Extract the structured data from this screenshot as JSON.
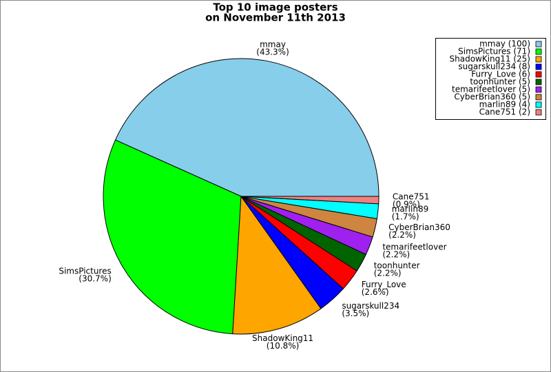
{
  "chart_data": {
    "type": "pie",
    "title": [
      "Top 10 image posters",
      "on November 11th 2013"
    ],
    "categories": [
      "mmay",
      "SimsPictures",
      "ShadowKing11",
      "sugarskull234",
      "Furry_Love",
      "toonhunter",
      "temarifeetlover",
      "CyberBrian360",
      "marlin89",
      "Cane751"
    ],
    "values": [
      100,
      71,
      25,
      8,
      6,
      5,
      5,
      5,
      4,
      2
    ],
    "percent_labels": [
      "(43.3%)",
      "(30.7%)",
      "(10.8%)",
      "(3.5%)",
      "(2.6%)",
      "(2.2%)",
      "(2.2%)",
      "(2.2%)",
      "(1.7%)",
      "(0.9%)"
    ],
    "legend_labels": [
      "mmay (100)",
      "SimsPictures (71)",
      "ShadowKing11 (25)",
      "sugarskull234 (8)",
      "Furry_Love (6)",
      "toonhunter (5)",
      "temarifeetlover (5)",
      "CyberBrian360 (5)",
      "marlin89 (4)",
      "Cane751 (2)"
    ],
    "colors": [
      "#87ceeb",
      "#00ff00",
      "#ffa500",
      "#0000ff",
      "#ff0000",
      "#006400",
      "#a020f0",
      "#cd853f",
      "#00ffff",
      "#f08080"
    ],
    "legend": "upper right"
  }
}
